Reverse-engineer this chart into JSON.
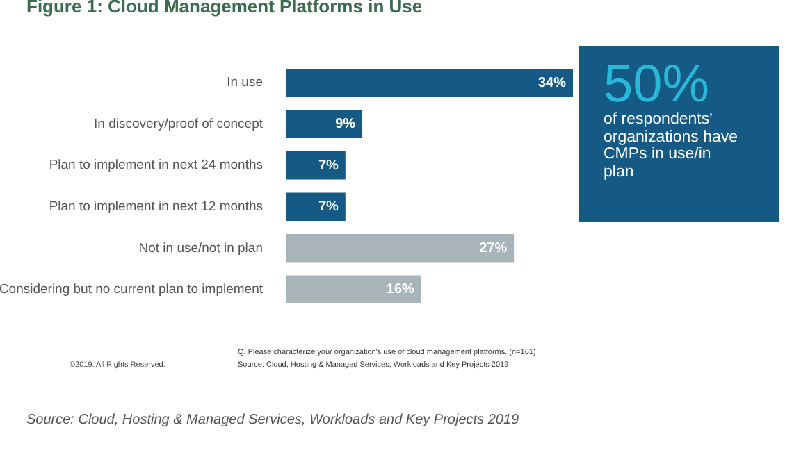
{
  "chart_data": {
    "type": "bar",
    "orientation": "horizontal",
    "title": "Figure 1: Cloud Management Platforms in Use",
    "categories": [
      "In use",
      "In discovery/proof of concept",
      "Plan to implement in next 24 months",
      "Plan to implement in next 12 months",
      "Not in use/not in plan",
      "Considering but no current plan to implement"
    ],
    "values": [
      34,
      9,
      7,
      7,
      27,
      16
    ],
    "colors": [
      "#145a84",
      "#145a84",
      "#145a84",
      "#145a84",
      "#a9b4b8",
      "#a9b4b8"
    ],
    "value_labels": [
      "34%",
      "9%",
      "7%",
      "7%",
      "27%",
      "16%"
    ],
    "annotations": [
      "50%",
      "of respondents' organizations have CMPs in use/in plan",
      "©2019. All Rights Reserved.",
      "Q. Please characterize your organization's use of cloud management platforms. (n=161)",
      "Source: Cloud, Hosting & Managed Services, Workloads and Key Projects 2019",
      "Source: Cloud, Hosting & Managed Services, Workloads and Key Projects 2019"
    ]
  }
}
